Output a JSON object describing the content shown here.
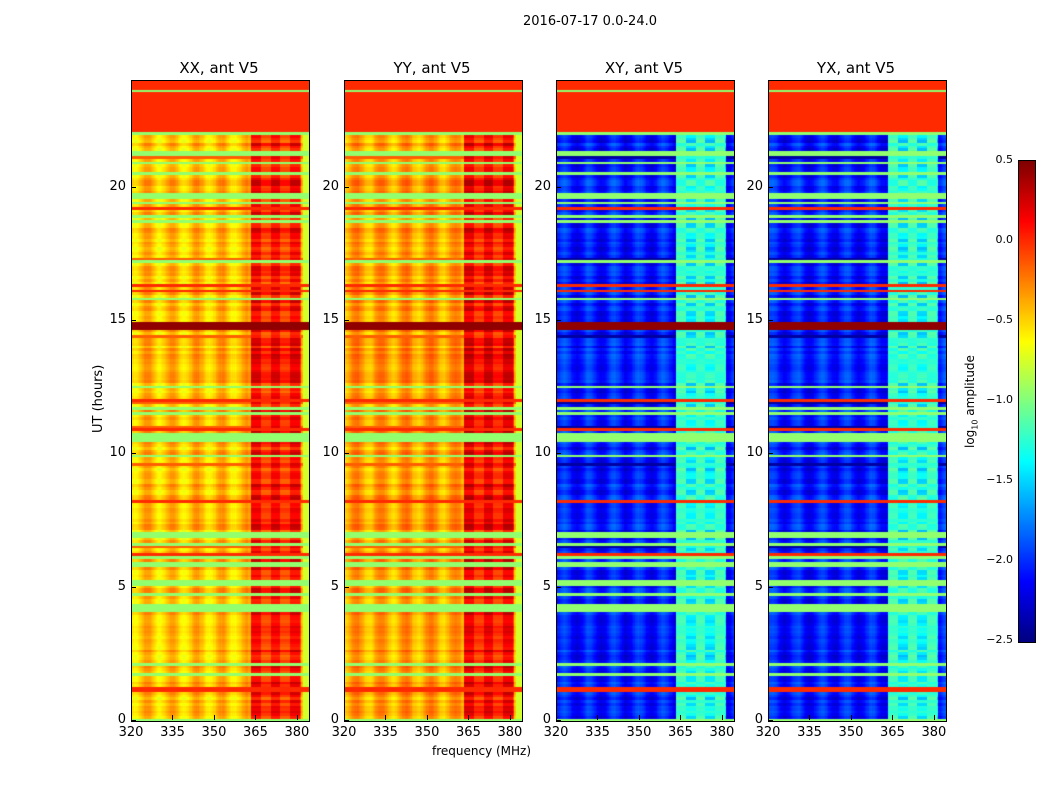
{
  "chart_data": {
    "type": "heatmap",
    "title": "2016-07-17 0.0-24.0",
    "xlabel": "frequency (MHz)",
    "ylabel": "UT (hours)",
    "xlim": [
      320,
      384
    ],
    "ylim": [
      0,
      24
    ],
    "xticks": [
      "320",
      "335",
      "350",
      "365",
      "380"
    ],
    "xtick_values": [
      320,
      335,
      350,
      365,
      380
    ],
    "yticks": [
      "0",
      "5",
      "10",
      "15",
      "20"
    ],
    "ytick_values": [
      0,
      5,
      10,
      15,
      20
    ],
    "panels": [
      {
        "title": "XX, ant V5",
        "base_level": -0.45,
        "rfi_level": 0.15
      },
      {
        "title": "YY, ant V5",
        "base_level": -0.35,
        "rfi_level": 0.2
      },
      {
        "title": "XY, ant V5",
        "base_level": -2.05,
        "rfi_level": -1.1
      },
      {
        "title": "YX, ant V5",
        "base_level": -2.05,
        "rfi_level": -1.1
      }
    ],
    "rfi_band_mhz": [
      363,
      381
    ],
    "flagged_hours": [
      22,
      24
    ],
    "bright_rows_hours": [
      14.8,
      5.1,
      1.1
    ],
    "colorbar": {
      "label": "log10 amplitude",
      "label_main": "log",
      "label_sub": "10",
      "label_rest": " amplitude",
      "vmin": -2.5,
      "vmax": 0.5,
      "ticks": [
        "0.5",
        "0.0",
        "−0.5",
        "−1.0",
        "−1.5",
        "−2.0",
        "−2.5"
      ],
      "tick_values": [
        0.5,
        0.0,
        -0.5,
        -1.0,
        -1.5,
        -2.0,
        -2.5
      ],
      "colormap": "jet"
    }
  }
}
